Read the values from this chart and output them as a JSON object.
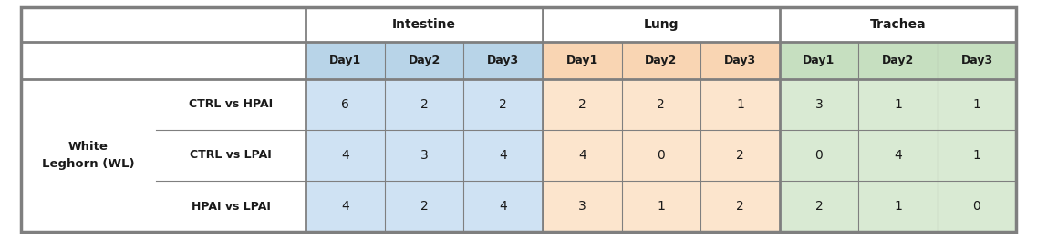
{
  "row_labels": [
    "CTRL vs HPAI",
    "CTRL vs LPAI",
    "HPAI vs LPAI"
  ],
  "col_groups": [
    "Intestine",
    "Lung",
    "Trachea"
  ],
  "col_subheaders": [
    "Day1",
    "Day2",
    "Day3",
    "Day1",
    "Day2",
    "Day3",
    "Day1",
    "Day2",
    "Day3"
  ],
  "data": [
    [
      6,
      2,
      2,
      2,
      2,
      1,
      3,
      1,
      1
    ],
    [
      4,
      3,
      4,
      4,
      0,
      2,
      0,
      4,
      1
    ],
    [
      4,
      2,
      4,
      3,
      1,
      2,
      2,
      1,
      0
    ]
  ],
  "group_colors": [
    "#cfe2f3",
    "#fce5cd",
    "#d9ead3"
  ],
  "group_colors_header": [
    "#b8d4e8",
    "#f9d5b3",
    "#c6dfc0"
  ],
  "outer_border_color": "#7f7f7f",
  "inner_line_color": "#7f7f7f",
  "text_color": "#1a1a1a",
  "header_text_color": "#1a1a1a",
  "figsize": [
    11.37,
    2.63
  ],
  "dpi": 100
}
